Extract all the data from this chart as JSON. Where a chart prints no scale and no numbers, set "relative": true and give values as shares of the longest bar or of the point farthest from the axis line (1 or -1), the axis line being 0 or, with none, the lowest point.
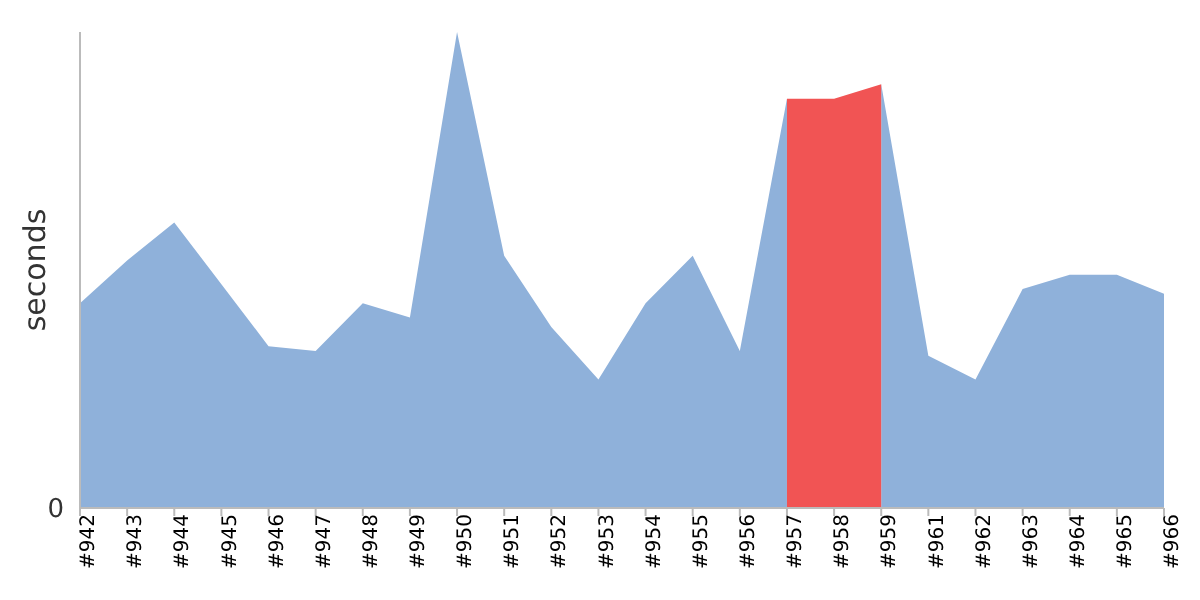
{
  "chart_data": {
    "type": "area",
    "ylabel": "seconds",
    "relative": true,
    "annotations": [
      "0"
    ],
    "categories": [
      "#942",
      "#943",
      "#944",
      "#945",
      "#946",
      "#947",
      "#948",
      "#949",
      "#950",
      "#951",
      "#952",
      "#953",
      "#954",
      "#955",
      "#956",
      "#957",
      "#958",
      "#959",
      "#961",
      "#962",
      "#963",
      "#964",
      "#965",
      "#966"
    ],
    "series": [
      {
        "color": "#8fb1da",
        "values": [
          0.43,
          0.52,
          0.6,
          0.47,
          0.34,
          0.33,
          0.43,
          0.4,
          1,
          0.53,
          0.38,
          0.27,
          0.43,
          0.53,
          0.33,
          0.86,
          null,
          0.89,
          0.32,
          0.27,
          0.46,
          0.49,
          0.49,
          0.45
        ]
      },
      {
        "color": "#f15454",
        "values": [
          null,
          null,
          null,
          null,
          null,
          null,
          null,
          null,
          null,
          null,
          null,
          null,
          null,
          null,
          null,
          0.86,
          0.86,
          0.89,
          null,
          null,
          null,
          null,
          null,
          null
        ]
      }
    ]
  }
}
